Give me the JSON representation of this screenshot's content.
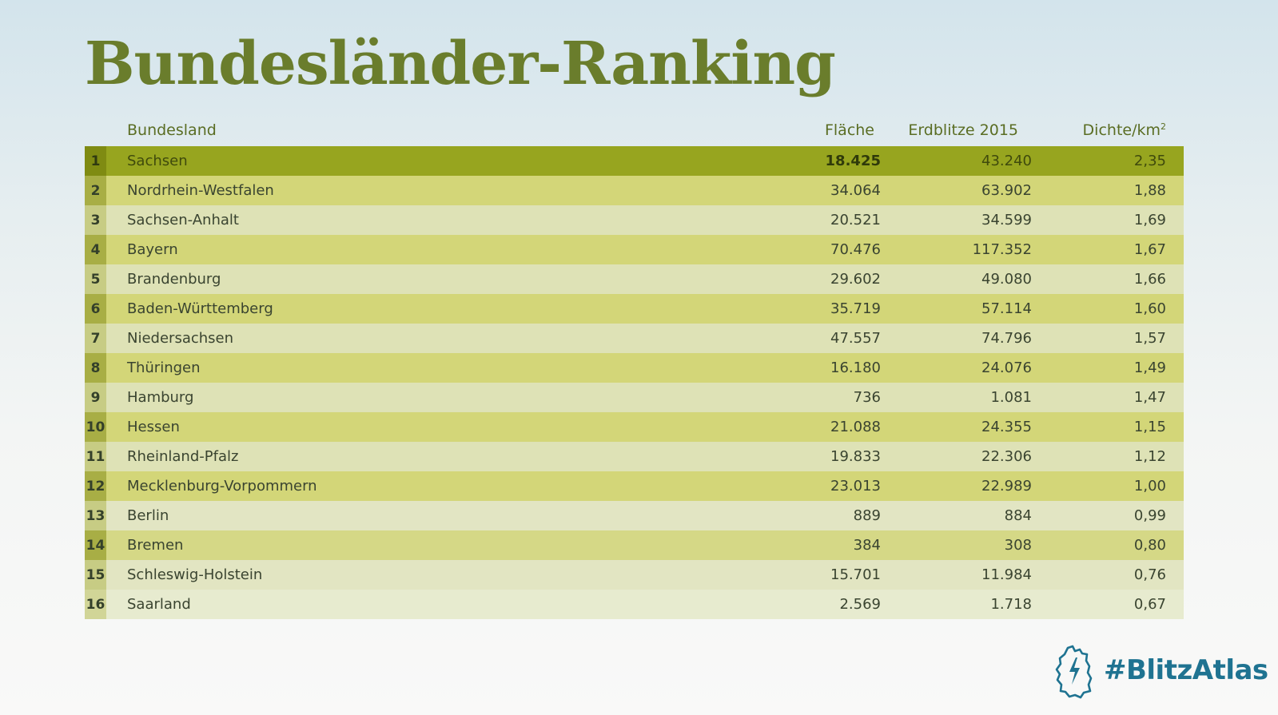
{
  "title": "Bundesländer-Ranking",
  "columns": {
    "name": "Bundesland",
    "area": "Fläche",
    "strikes": "Erdblitze 2015",
    "density": "Dichte/km",
    "density_sup": "2"
  },
  "rows": [
    {
      "rank": "1",
      "name": "Sachsen",
      "area": "18.425",
      "strikes": "43.240",
      "density": "2,35"
    },
    {
      "rank": "2",
      "name": "Nordrhein-Westfalen",
      "area": "34.064",
      "strikes": "63.902",
      "density": "1,88"
    },
    {
      "rank": "3",
      "name": "Sachsen-Anhalt",
      "area": "20.521",
      "strikes": "34.599",
      "density": "1,69"
    },
    {
      "rank": "4",
      "name": "Bayern",
      "area": "70.476",
      "strikes": "117.352",
      "density": "1,67"
    },
    {
      "rank": "5",
      "name": "Brandenburg",
      "area": "29.602",
      "strikes": "49.080",
      "density": "1,66"
    },
    {
      "rank": "6",
      "name": "Baden-Württemberg",
      "area": "35.719",
      "strikes": "57.114",
      "density": "1,60"
    },
    {
      "rank": "7",
      "name": "Niedersachsen",
      "area": "47.557",
      "strikes": "74.796",
      "density": "1,57"
    },
    {
      "rank": "8",
      "name": "Thüringen",
      "area": "16.180",
      "strikes": "24.076",
      "density": "1,49"
    },
    {
      "rank": "9",
      "name": "Hamburg",
      "area": "736",
      "strikes": "1.081",
      "density": "1,47"
    },
    {
      "rank": "10",
      "name": "Hessen",
      "area": "21.088",
      "strikes": "24.355",
      "density": "1,15"
    },
    {
      "rank": "11",
      "name": "Rheinland-Pfalz",
      "area": "19.833",
      "strikes": "22.306",
      "density": "1,12"
    },
    {
      "rank": "12",
      "name": "Mecklenburg-Vorpommern",
      "area": "23.013",
      "strikes": "22.989",
      "density": "1,00"
    },
    {
      "rank": "13",
      "name": "Berlin",
      "area": "889",
      "strikes": "884",
      "density": "0,99"
    },
    {
      "rank": "14",
      "name": "Bremen",
      "area": "384",
      "strikes": "308",
      "density": "0,80"
    },
    {
      "rank": "15",
      "name": "Schleswig-Holstein",
      "area": "15.701",
      "strikes": "11.984",
      "density": "0,76"
    },
    {
      "rank": "16",
      "name": "Saarland",
      "area": "2.569",
      "strikes": "1.718",
      "density": "0,67"
    }
  ],
  "brand": {
    "text": "#BlitzAtlas",
    "icon": "germany-lightning-icon",
    "color": "#1f7391"
  },
  "colors": {
    "title": "#6a7d2c",
    "highlight_row": "#97a51f",
    "row_dark": "#d3d678",
    "row_light": "#dee2b6"
  }
}
